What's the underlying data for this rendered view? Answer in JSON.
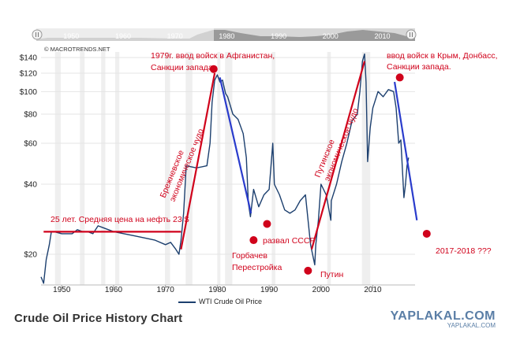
{
  "source": "© MACROTRENDS.NET",
  "navigator": {
    "years": [
      "1950",
      "1960",
      "1970",
      "1980",
      "1990",
      "2000",
      "2010"
    ]
  },
  "chart_data": {
    "type": "line",
    "title": "Crude Oil Price History Chart",
    "y_scale": "log",
    "xlim": [
      1946,
      2018
    ],
    "ylim": [
      14,
      150
    ],
    "x_ticks": [
      "1950",
      "1960",
      "1970",
      "1980",
      "1990",
      "2000",
      "2010"
    ],
    "y_ticks": [
      "$140",
      "$120",
      "$100",
      "$80",
      "$60",
      "$40",
      "$20"
    ],
    "legend": "WTI Crude Oil Price",
    "series": [
      {
        "name": "WTI Crude Oil Price",
        "points": [
          [
            1946,
            16
          ],
          [
            1946.5,
            15
          ],
          [
            1947,
            19
          ],
          [
            1947.6,
            22
          ],
          [
            1948,
            25
          ],
          [
            1948.5,
            25
          ],
          [
            1950,
            24.5
          ],
          [
            1952,
            24.5
          ],
          [
            1953,
            25.5
          ],
          [
            1954,
            25
          ],
          [
            1955,
            25
          ],
          [
            1956,
            24.5
          ],
          [
            1957,
            26.5
          ],
          [
            1958,
            26
          ],
          [
            1959,
            25.5
          ],
          [
            1960,
            25
          ],
          [
            1962,
            24.5
          ],
          [
            1964,
            24
          ],
          [
            1966,
            23.5
          ],
          [
            1968,
            23
          ],
          [
            1970,
            22
          ],
          [
            1971,
            22.5
          ],
          [
            1972,
            21
          ],
          [
            1972.6,
            20
          ],
          [
            1973,
            23
          ],
          [
            1973.5,
            30
          ],
          [
            1974,
            48
          ],
          [
            1976,
            47
          ],
          [
            1978,
            48
          ],
          [
            1978.6,
            60
          ],
          [
            1979,
            90
          ],
          [
            1979.5,
            112
          ],
          [
            1980,
            118
          ],
          [
            1980.5,
            110
          ],
          [
            1981,
            112
          ],
          [
            1981.6,
            98
          ],
          [
            1982,
            95
          ],
          [
            1983,
            80
          ],
          [
            1984,
            76
          ],
          [
            1985,
            66
          ],
          [
            1985.6,
            52
          ],
          [
            1986,
            33
          ],
          [
            1986.4,
            29
          ],
          [
            1987,
            38
          ],
          [
            1988,
            32
          ],
          [
            1989,
            36
          ],
          [
            1990,
            38
          ],
          [
            1990.7,
            60
          ],
          [
            1991,
            40
          ],
          [
            1992,
            36
          ],
          [
            1993,
            31
          ],
          [
            1994,
            30
          ],
          [
            1995,
            31
          ],
          [
            1996,
            34
          ],
          [
            1997,
            36
          ],
          [
            1998,
            22
          ],
          [
            1998.8,
            18
          ],
          [
            1999,
            22
          ],
          [
            1999.5,
            28
          ],
          [
            2000,
            40
          ],
          [
            2001,
            36
          ],
          [
            2001.9,
            28
          ],
          [
            2002,
            34
          ],
          [
            2003,
            40
          ],
          [
            2004,
            50
          ],
          [
            2005,
            60
          ],
          [
            2006,
            75
          ],
          [
            2007,
            80
          ],
          [
            2007.5,
            100
          ],
          [
            2008,
            135
          ],
          [
            2008.4,
            145
          ],
          [
            2008.7,
            110
          ],
          [
            2009,
            50
          ],
          [
            2009.5,
            70
          ],
          [
            2010,
            85
          ],
          [
            2011,
            100
          ],
          [
            2012,
            95
          ],
          [
            2013,
            102
          ],
          [
            2014,
            100
          ],
          [
            2014.5,
            85
          ],
          [
            2015,
            60
          ],
          [
            2015.4,
            62
          ],
          [
            2016,
            35
          ],
          [
            2016.3,
            40
          ],
          [
            2016.6,
            48
          ],
          [
            2016.9,
            52
          ]
        ]
      }
    ],
    "trend_lines": [
      {
        "color": "red",
        "from": [
          1946.5,
          25
        ],
        "to": [
          1973,
          25
        ]
      },
      {
        "color": "red",
        "from": [
          1973,
          21
        ],
        "to": [
          1979.5,
          120
        ]
      },
      {
        "color": "blue",
        "from": [
          1980.5,
          115
        ],
        "to": [
          1986.5,
          30
        ]
      },
      {
        "color": "red",
        "from": [
          1998.2,
          21
        ],
        "to": [
          2008.4,
          135
        ]
      },
      {
        "color": "blue",
        "from": [
          2014.2,
          110
        ],
        "to": [
          2018.5,
          28
        ]
      }
    ],
    "markers": [
      {
        "id": "afghan",
        "x": 1979.3,
        "y": 125
      },
      {
        "id": "gorbachev",
        "x": 1987,
        "y": 23
      },
      {
        "id": "ussr",
        "x": 1989.6,
        "y": 27
      },
      {
        "id": "putin",
        "x": 1997.5,
        "y": 17
      },
      {
        "id": "crimea",
        "x": 2015.2,
        "y": 115
      },
      {
        "id": "forecast",
        "x": 2020.4,
        "y": 24.5
      }
    ]
  },
  "annotations": {
    "afghan": [
      "1979г. ввод войск в Афганистан,",
      "Санкции запада."
    ],
    "crimea": [
      "ввод войск в Крым, Донбасс,",
      "Санкции запада."
    ],
    "avg25": "25 лет. Средняя цена на нефть 23 $",
    "brezhnev": [
      "Брежневское",
      "экономическое чудо"
    ],
    "putin_miracle": [
      "Путинское",
      "экономическое чудо"
    ],
    "gorbachev": [
      "Горбачев",
      "Перестройка"
    ],
    "ussr": "развал СССР",
    "putin": "Путин",
    "forecast": "2017-2018  ???"
  },
  "watermark": {
    "big": "YAPLAKAL.COM",
    "small": "YAPLAKAL.COM"
  },
  "colors": {
    "line": "#1c3f6e",
    "red": "#d0021b",
    "blue": "#2a3ccc",
    "band": "#efefef"
  }
}
